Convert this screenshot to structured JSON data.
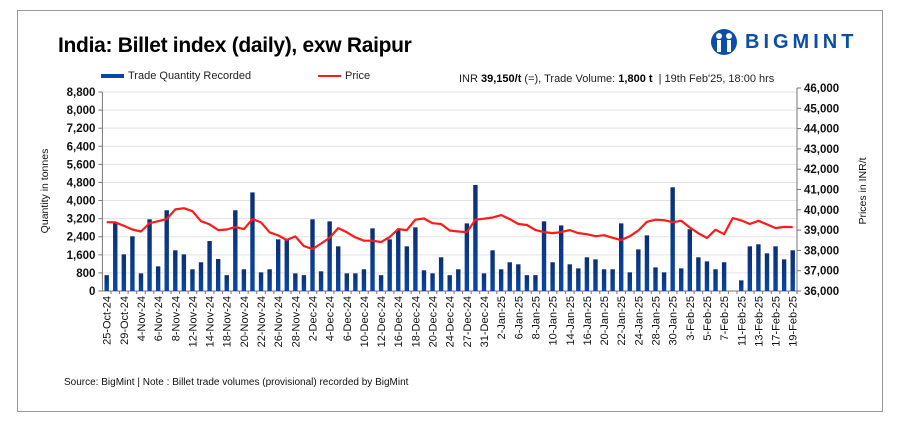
{
  "title": "India: Billet index (daily), exw Raipur",
  "logo": {
    "text": "BIGMINT",
    "color": "#0b4fa8"
  },
  "info": {
    "prefix": "INR ",
    "price": "39,150/t",
    "change": " (=), Trade Volume: ",
    "volume": "1,800 t",
    "suffix": "  | 19th Feb'25, 18:00 hrs"
  },
  "source": "Source: BigMint | Note : Billet trade volumes (provisional) recorded by BigMint",
  "chart_data": {
    "type": "bar+line",
    "title": "India: Billet index (daily), exw Raipur",
    "legend": {
      "placement": "top",
      "entries": [
        "Trade Quantity Recorded",
        "Price"
      ]
    },
    "colors": {
      "bar": "#0a47a3",
      "bar_dark": "#0b2f74",
      "line": "#ff1a1a",
      "grid": "#e3e3e3"
    },
    "grid": true,
    "ylabel": "Quantity in tonnes",
    "y2label": "Prices in INR/t",
    "ylim": [
      0,
      8800
    ],
    "y_ticks": [
      "0",
      "800",
      "1,600",
      "2,400",
      "3,200",
      "4,000",
      "4,800",
      "5,600",
      "6,400",
      "7,200",
      "8,000",
      "8,800"
    ],
    "y2lim": [
      36000,
      46000
    ],
    "y2_ticks": [
      "36,000",
      "37,000",
      "38,000",
      "39,000",
      "40,000",
      "41,000",
      "42,000",
      "43,000",
      "44,000",
      "45,000",
      "46,000"
    ],
    "x_tick_labels": [
      "25-Oct-24",
      "29-Oct-24",
      "4-Nov-24",
      "6-Nov-24",
      "8-Nov-24",
      "12-Nov-24",
      "14-Nov-24",
      "18-Nov-24",
      "20-Nov-24",
      "22-Nov-24",
      "26-Nov-24",
      "28-Nov-24",
      "2-Dec-24",
      "4-Dec-24",
      "6-Dec-24",
      "10-Dec-24",
      "12-Dec-24",
      "16-Dec-24",
      "18-Dec-24",
      "20-Dec-24",
      "24-Dec-24",
      "27-Dec-24",
      "31-Dec-24",
      "2-Jan-25",
      "6-Jan-25",
      "8-Jan-25",
      "10-Jan-25",
      "14-Jan-25",
      "16-Jan-25",
      "20-Jan-25",
      "22-Jan-25",
      "24-Jan-25",
      "28-Jan-25",
      "30-Jan-25",
      "3-Feb-25",
      "5-Feb-25",
      "7-Feb-25",
      "11-Feb-25",
      "13-Feb-25",
      "17-Feb-25",
      "19-Feb-25"
    ],
    "series": [
      {
        "name": "Trade Quantity Recorded",
        "type": "bar",
        "values": [
          700,
          3050,
          1620,
          2420,
          780,
          3170,
          1090,
          3570,
          1800,
          1620,
          960,
          1270,
          2210,
          1415,
          700,
          3570,
          960,
          4360,
          825,
          960,
          2285,
          2285,
          780,
          700,
          3170,
          870,
          3080,
          1975,
          780,
          780,
          960,
          2770,
          700,
          2285,
          2680,
          1975,
          2815,
          915,
          780,
          1490,
          700,
          960,
          2990,
          4690,
          780,
          1800,
          960,
          1270,
          1180,
          700,
          700,
          3080,
          1270,
          2900,
          1180,
          1000,
          1490,
          1400,
          960,
          960,
          2990,
          825,
          1840,
          2460,
          1045,
          825,
          4585,
          1000,
          2730,
          1490,
          1310,
          960,
          1270,
          0,
          470,
          1975,
          2065,
          1665,
          1975,
          1400,
          1800
        ]
      },
      {
        "name": "Price",
        "type": "line",
        "axis": "right",
        "values": [
          39390,
          39380,
          39210,
          39030,
          38930,
          39340,
          39440,
          39540,
          40020,
          40080,
          39930,
          39440,
          39280,
          39000,
          39030,
          39150,
          39050,
          39540,
          39380,
          38890,
          38740,
          38510,
          38690,
          38210,
          38070,
          38340,
          38620,
          39100,
          38890,
          38640,
          38480,
          38480,
          38410,
          38660,
          39050,
          39000,
          39510,
          39570,
          39340,
          39300,
          38980,
          38930,
          38900,
          39510,
          39560,
          39620,
          39740,
          39540,
          39300,
          39250,
          39000,
          38900,
          38850,
          38900,
          39000,
          38850,
          38800,
          38700,
          38750,
          38620,
          38510,
          38700,
          38980,
          39410,
          39510,
          39490,
          39390,
          39460,
          39130,
          38840,
          38610,
          39020,
          38800,
          39590,
          39480,
          39300,
          39460,
          39280,
          39100,
          39160,
          39150
        ]
      }
    ]
  }
}
